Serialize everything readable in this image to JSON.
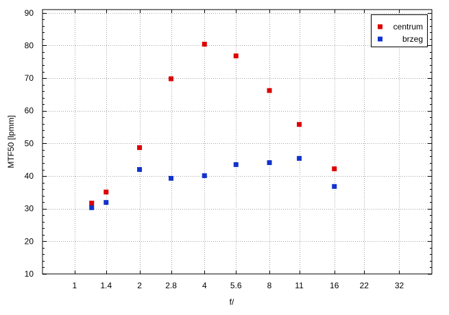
{
  "chart_data": {
    "type": "scatter",
    "title": "",
    "xlabel": "f/",
    "ylabel": "MTF50 [lpmm]",
    "x_scale": "log2",
    "x_ticks": [
      1,
      1.4,
      2,
      2.8,
      4,
      5.6,
      8,
      11,
      16,
      22,
      32
    ],
    "x_tick_labels": [
      "1",
      "1.4",
      "2",
      "2.8",
      "4",
      "5.6",
      "8",
      "11",
      "16",
      "22",
      "32"
    ],
    "xlim": [
      0.71,
      45.3
    ],
    "ylim": [
      10,
      91
    ],
    "y_ticks": [
      10,
      20,
      30,
      40,
      50,
      60,
      70,
      80,
      90
    ],
    "y_tick_labels": [
      "10",
      "20",
      "30",
      "40",
      "50",
      "60",
      "70",
      "80",
      "90"
    ],
    "grid": true,
    "legend_position": "top-right",
    "series": [
      {
        "name": "centrum",
        "color": "#dd0000",
        "points": [
          {
            "x": 1.2,
            "y": 31.7
          },
          {
            "x": 1.4,
            "y": 35.1
          },
          {
            "x": 2.0,
            "y": 48.7
          },
          {
            "x": 2.8,
            "y": 69.8
          },
          {
            "x": 4.0,
            "y": 80.4
          },
          {
            "x": 5.6,
            "y": 76.8
          },
          {
            "x": 8.0,
            "y": 66.2
          },
          {
            "x": 11.0,
            "y": 55.8
          },
          {
            "x": 16.0,
            "y": 42.2
          }
        ]
      },
      {
        "name": "brzeg",
        "color": "#1133cc",
        "points": [
          {
            "x": 1.2,
            "y": 30.3
          },
          {
            "x": 1.4,
            "y": 31.9
          },
          {
            "x": 2.0,
            "y": 42.0
          },
          {
            "x": 2.8,
            "y": 39.3
          },
          {
            "x": 4.0,
            "y": 40.1
          },
          {
            "x": 5.6,
            "y": 43.5
          },
          {
            "x": 8.0,
            "y": 44.1
          },
          {
            "x": 11.0,
            "y": 45.4
          },
          {
            "x": 16.0,
            "y": 36.8
          }
        ]
      }
    ]
  }
}
